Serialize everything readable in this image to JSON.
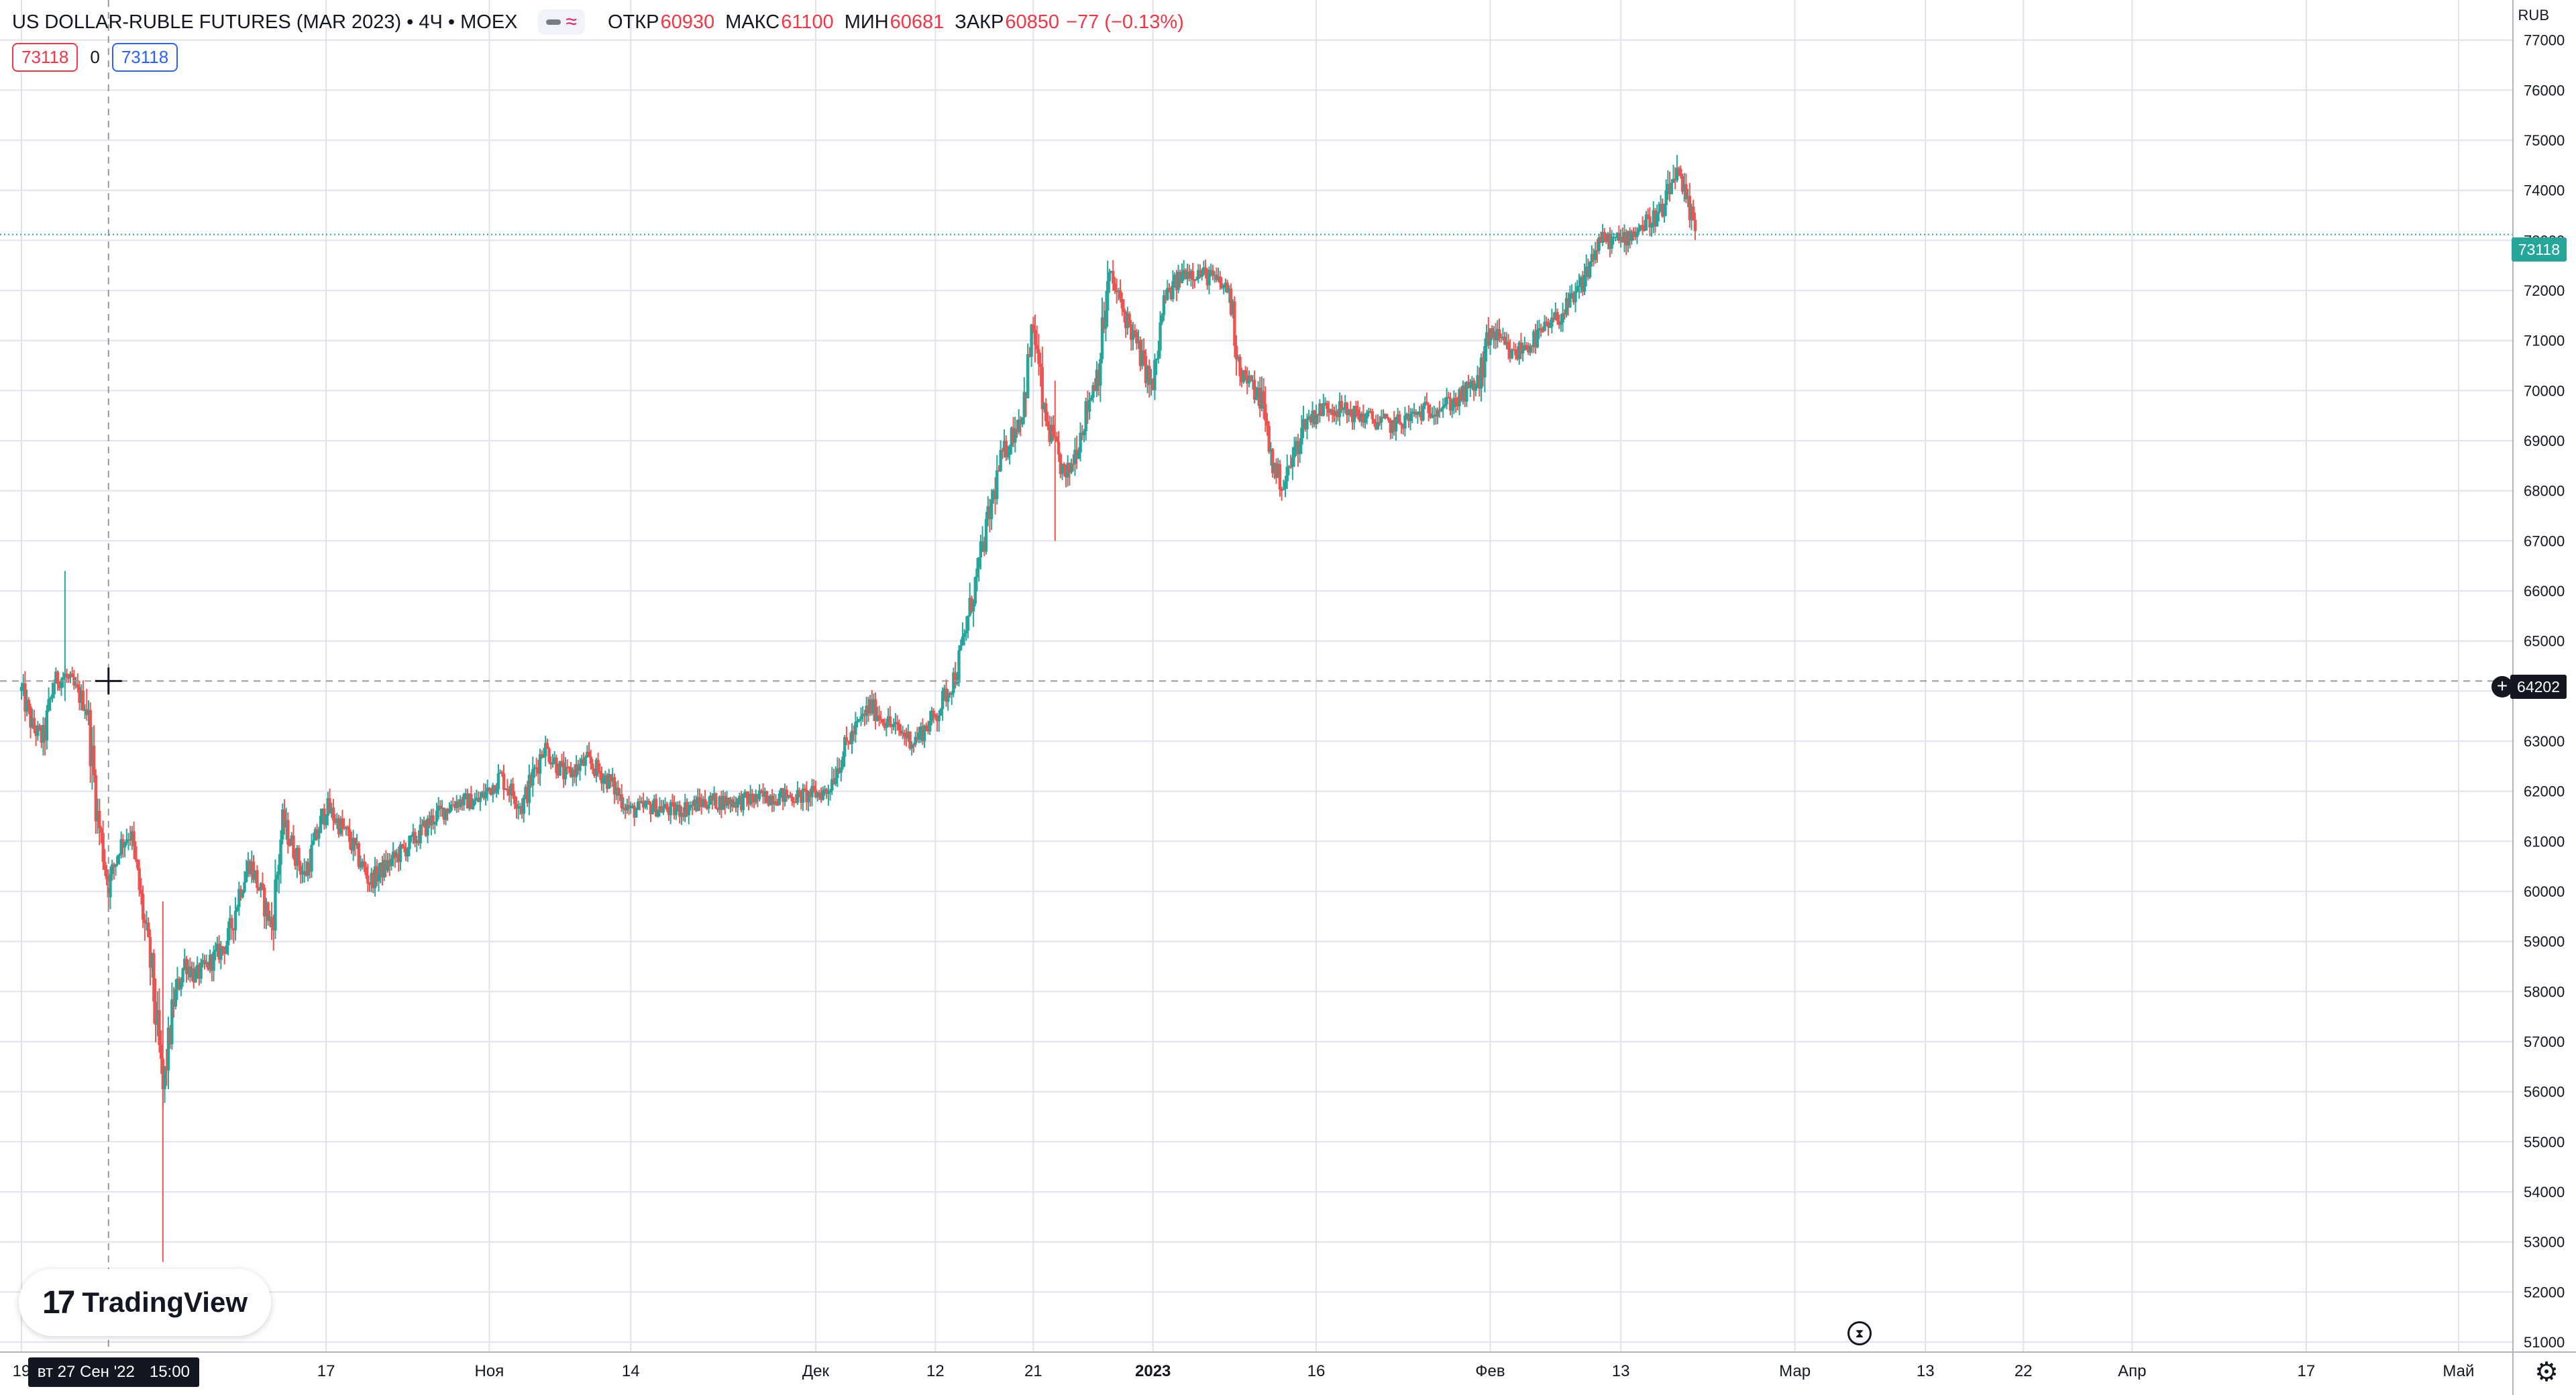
{
  "legend": {
    "title": "US DOLLAR-RUBLE FUTURES (MAR 2023) • 4Ч • MOEX",
    "open_label": "ОТКР",
    "open_value": "60930",
    "high_label": "МАКС",
    "high_value": "61100",
    "low_label": "МИН",
    "low_value": "60681",
    "close_label": "ЗАКР",
    "close_value": "60850",
    "change": "−77 (−0.13%)"
  },
  "pills": {
    "left_value": "73118",
    "middle_value": "0",
    "right_value": "73118"
  },
  "logo": {
    "mark_icon": "tradingview-logo-icon",
    "text": "TradingView"
  },
  "price_axis": {
    "unit": "RUB",
    "last_price_label": "73118",
    "crosshair_price_label": "64202"
  },
  "time_axis": {
    "crosshair_date": "вт 27 Сен '22",
    "crosshair_time": "15:00"
  },
  "colors": {
    "up": "#26a69a",
    "down": "#ef5350",
    "grid": "#e0e3eb",
    "crosshair": "#9598a1",
    "last_line": "#26a69a",
    "text": "#131722"
  },
  "icons": {
    "settings": "gear-icon",
    "replay": "replay-icon",
    "add_alert": "plus-circle-icon"
  },
  "chart_data": {
    "type": "candlestick",
    "title": "US DOLLAR-RUBLE FUTURES (MAR 2023) • 4Ч • MOEX",
    "ylabel": "RUB",
    "ylim": [
      50800,
      77800
    ],
    "yticks": [
      51000,
      52000,
      53000,
      54000,
      55000,
      56000,
      57000,
      58000,
      59000,
      60000,
      61000,
      62000,
      63000,
      64000,
      65000,
      66000,
      67000,
      68000,
      69000,
      70000,
      71000,
      72000,
      73000,
      74000,
      75000,
      76000,
      77000
    ],
    "xlim": [
      "2022-09-19",
      "2023-05-06"
    ],
    "xticks": [
      {
        "label": "19",
        "date": "2022-09-19"
      },
      {
        "label": "17",
        "date": "2022-10-17"
      },
      {
        "label": "Ноя",
        "date": "2022-11-01"
      },
      {
        "label": "14",
        "date": "2022-11-14"
      },
      {
        "label": "Дек",
        "date": "2022-12-01"
      },
      {
        "label": "12",
        "date": "2022-12-12"
      },
      {
        "label": "21",
        "date": "2022-12-21"
      },
      {
        "label": "2023",
        "date": "2023-01-01"
      },
      {
        "label": "16",
        "date": "2023-01-16"
      },
      {
        "label": "Фев",
        "date": "2023-02-01"
      },
      {
        "label": "13",
        "date": "2023-02-13"
      },
      {
        "label": "Мар",
        "date": "2023-03-01"
      },
      {
        "label": "13",
        "date": "2023-03-13"
      },
      {
        "label": "22",
        "date": "2023-03-22"
      },
      {
        "label": "Апр",
        "date": "2023-04-01"
      },
      {
        "label": "17",
        "date": "2023-04-17"
      },
      {
        "label": "Май",
        "date": "2023-05-01"
      }
    ],
    "last_price": 73118,
    "crosshair": {
      "date": "2022-09-27",
      "price": 64202
    },
    "close_path": [
      [
        "2022-09-19",
        64000
      ],
      [
        "2022-09-20",
        63300
      ],
      [
        "2022-09-21",
        63000
      ],
      [
        "2022-09-22",
        64200
      ],
      [
        "2022-09-23",
        64300
      ],
      [
        "2022-09-25",
        63700
      ],
      [
        "2022-09-26",
        61500
      ],
      [
        "2022-09-27",
        60100
      ],
      [
        "2022-09-28",
        60900
      ],
      [
        "2022-09-29",
        61200
      ],
      [
        "2022-09-30",
        59800
      ],
      [
        "2022-10-01",
        58300
      ],
      [
        "2022-10-02",
        56000
      ],
      [
        "2022-10-03",
        57800
      ],
      [
        "2022-10-04",
        58600
      ],
      [
        "2022-10-05",
        58300
      ],
      [
        "2022-10-06",
        58500
      ],
      [
        "2022-10-08",
        59000
      ],
      [
        "2022-10-09",
        60000
      ],
      [
        "2022-10-10",
        60600
      ],
      [
        "2022-10-12",
        59300
      ],
      [
        "2022-10-13",
        61400
      ],
      [
        "2022-10-15",
        60300
      ],
      [
        "2022-10-16",
        61000
      ],
      [
        "2022-10-17",
        61700
      ],
      [
        "2022-10-19",
        61100
      ],
      [
        "2022-10-21",
        60200
      ],
      [
        "2022-10-23",
        60600
      ],
      [
        "2022-10-25",
        61000
      ],
      [
        "2022-10-27",
        61500
      ],
      [
        "2022-10-29",
        61800
      ],
      [
        "2022-10-31",
        61800
      ],
      [
        "2022-11-02",
        62300
      ],
      [
        "2022-11-04",
        61700
      ],
      [
        "2022-11-06",
        62900
      ],
      [
        "2022-11-08",
        62300
      ],
      [
        "2022-11-10",
        62600
      ],
      [
        "2022-11-12",
        62200
      ],
      [
        "2022-11-14",
        61600
      ],
      [
        "2022-11-16",
        61700
      ],
      [
        "2022-11-18",
        61600
      ],
      [
        "2022-11-21",
        61800
      ],
      [
        "2022-11-24",
        61800
      ],
      [
        "2022-11-27",
        61900
      ],
      [
        "2022-11-30",
        61900
      ],
      [
        "2022-12-02",
        62000
      ],
      [
        "2022-12-04",
        63000
      ],
      [
        "2022-12-06",
        63700
      ],
      [
        "2022-12-08",
        63300
      ],
      [
        "2022-12-10",
        63000
      ],
      [
        "2022-12-12",
        63500
      ],
      [
        "2022-12-14",
        64400
      ],
      [
        "2022-12-16",
        66500
      ],
      [
        "2022-12-18",
        68600
      ],
      [
        "2022-12-20",
        69600
      ],
      [
        "2022-12-21",
        71300
      ],
      [
        "2022-12-22",
        69500
      ],
      [
        "2022-12-24",
        68200
      ],
      [
        "2022-12-25",
        68900
      ],
      [
        "2022-12-27",
        70500
      ],
      [
        "2022-12-28",
        72300
      ],
      [
        "2022-12-30",
        71200
      ],
      [
        "2023-01-01",
        70000
      ],
      [
        "2023-01-02",
        71800
      ],
      [
        "2023-01-04",
        72400
      ],
      [
        "2023-01-06",
        72300
      ],
      [
        "2023-01-08",
        72000
      ],
      [
        "2023-01-09",
        70400
      ],
      [
        "2023-01-11",
        69800
      ],
      [
        "2023-01-12",
        68500
      ],
      [
        "2023-01-13",
        68100
      ],
      [
        "2023-01-15",
        69400
      ],
      [
        "2023-01-17",
        69700
      ],
      [
        "2023-01-20",
        69500
      ],
      [
        "2023-01-23",
        69300
      ],
      [
        "2023-01-26",
        69600
      ],
      [
        "2023-01-29",
        69800
      ],
      [
        "2023-01-31",
        70200
      ],
      [
        "2023-02-01",
        71200
      ],
      [
        "2023-02-03",
        70700
      ],
      [
        "2023-02-05",
        71000
      ],
      [
        "2023-02-07",
        71400
      ],
      [
        "2023-02-09",
        71900
      ],
      [
        "2023-02-11",
        73000
      ],
      [
        "2023-02-13",
        73000
      ],
      [
        "2023-02-15",
        73300
      ],
      [
        "2023-02-17",
        73600
      ],
      [
        "2023-02-18",
        74400
      ],
      [
        "2023-02-20",
        73100
      ]
    ]
  }
}
